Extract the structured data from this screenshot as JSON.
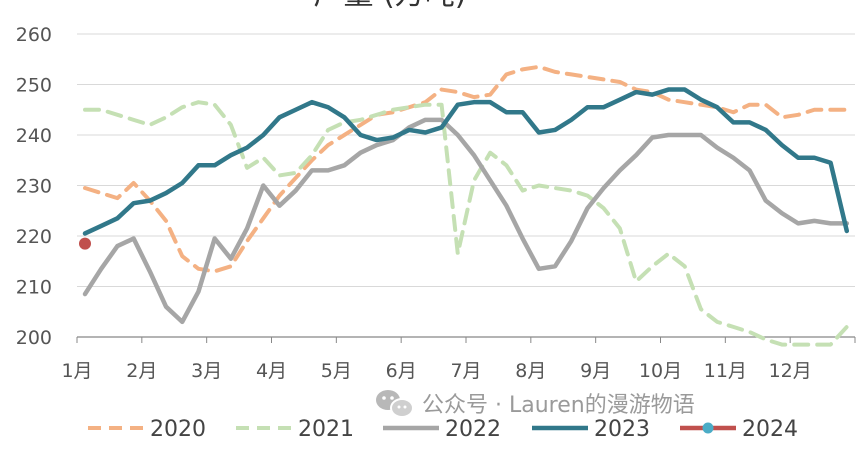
{
  "chart_data": {
    "type": "line",
    "title": "产量 (万吨)",
    "xlabel": "",
    "ylabel": "",
    "ylim": [
      200,
      260
    ],
    "yticks": [
      200,
      210,
      220,
      230,
      240,
      250,
      260
    ],
    "xlim": [
      0,
      48
    ],
    "x_tick_labels": [
      "1月",
      "2月",
      "3月",
      "4月",
      "5月",
      "6月",
      "7月",
      "8月",
      "9月",
      "10月",
      "11月",
      "12月"
    ],
    "grid": "horizontal",
    "legend_position": "bottom",
    "series": [
      {
        "name": "2020",
        "color": "#f4b183",
        "style": "dashed",
        "x": [
          0,
          1,
          2,
          3,
          4,
          5,
          6,
          7,
          8,
          9,
          10,
          11,
          12,
          13,
          14,
          15,
          16,
          17,
          18,
          19,
          20,
          21,
          22,
          23,
          24,
          25,
          26,
          27,
          28,
          29,
          30,
          31,
          32,
          33,
          34,
          35,
          36,
          37,
          38,
          39,
          40,
          41,
          42,
          43,
          44,
          45,
          46,
          47
        ],
        "values": [
          229.5,
          228.5,
          227.5,
          230.5,
          227,
          223,
          216,
          213.5,
          213,
          214,
          219,
          223.5,
          228,
          231.5,
          235,
          238,
          240,
          242,
          244,
          244.5,
          245.5,
          246.5,
          249,
          248.5,
          247.5,
          248,
          252,
          253,
          253.5,
          252.5,
          252,
          251.5,
          251,
          250.5,
          249,
          248.5,
          247,
          246.5,
          246,
          245.5,
          244.5,
          246,
          246,
          243.5,
          244,
          245,
          245,
          245
        ]
      },
      {
        "name": "2021",
        "color": "#c5e0b4",
        "style": "dashed",
        "x": [
          0,
          1,
          2,
          3,
          4,
          5,
          6,
          7,
          8,
          9,
          10,
          11,
          12,
          13,
          14,
          15,
          16,
          17,
          18,
          19,
          20,
          21,
          22,
          23,
          24,
          25,
          26,
          27,
          28,
          29,
          30,
          31,
          32,
          33,
          34,
          35,
          36,
          37,
          38,
          39,
          40,
          41,
          42,
          43,
          44,
          45,
          46,
          47
        ],
        "values": [
          245,
          245,
          244,
          243,
          242,
          243.5,
          245.5,
          246.5,
          246,
          242,
          233.5,
          235.5,
          232,
          232.5,
          236,
          241,
          242.5,
          243,
          244,
          245,
          245.5,
          246,
          246,
          216.5,
          231,
          236.5,
          234,
          229,
          230,
          229.5,
          229,
          228,
          225.5,
          221.5,
          211,
          214,
          216.5,
          214,
          205.5,
          203,
          202,
          201,
          199.5,
          198.5,
          198.5,
          198.5,
          198.5,
          202
        ]
      },
      {
        "name": "2022",
        "color": "#a6a6a6",
        "style": "solid",
        "x": [
          0,
          1,
          2,
          3,
          4,
          5,
          6,
          7,
          8,
          9,
          10,
          11,
          12,
          13,
          14,
          15,
          16,
          17,
          18,
          19,
          20,
          21,
          22,
          23,
          24,
          25,
          26,
          27,
          28,
          29,
          30,
          31,
          32,
          33,
          34,
          35,
          36,
          37,
          38,
          39,
          40,
          41,
          42,
          43,
          44,
          45,
          46,
          47
        ],
        "values": [
          208.5,
          213.5,
          218,
          219.5,
          213,
          206,
          203,
          209,
          219.5,
          215.5,
          221.5,
          230,
          226,
          229,
          233,
          233,
          234,
          236.5,
          238,
          239,
          241.5,
          243,
          243,
          240,
          236,
          231,
          226,
          219.5,
          213.5,
          214,
          219,
          225.5,
          229.5,
          233,
          236,
          239.5,
          240,
          240,
          240,
          237.5,
          235.5,
          233,
          227,
          224.5,
          222.5,
          223,
          222.5,
          222.5
        ]
      },
      {
        "name": "2023",
        "color": "#31788a",
        "style": "solid",
        "x": [
          0,
          1,
          2,
          3,
          4,
          5,
          6,
          7,
          8,
          9,
          10,
          11,
          12,
          13,
          14,
          15,
          16,
          17,
          18,
          19,
          20,
          21,
          22,
          23,
          24,
          25,
          26,
          27,
          28,
          29,
          30,
          31,
          32,
          33,
          34,
          35,
          36,
          37,
          38,
          39,
          40,
          41,
          42,
          43,
          44,
          45,
          46,
          47
        ],
        "values": [
          220.5,
          222,
          223.5,
          226.5,
          227,
          228.5,
          230.5,
          234,
          234,
          236,
          237.5,
          240,
          243.5,
          245,
          246.5,
          245.5,
          243.5,
          240,
          239,
          239.5,
          241,
          240.5,
          241.5,
          246,
          246.5,
          246.5,
          244.5,
          244.5,
          240.5,
          241,
          243,
          245.5,
          245.5,
          247,
          248.5,
          248,
          249,
          249,
          247,
          245.5,
          242.5,
          242.5,
          241,
          238,
          235.5,
          235.5,
          234.5,
          221
        ]
      },
      {
        "name": "2024",
        "color": "#c0504d",
        "style": "point",
        "x": [
          0
        ],
        "values": [
          218.5
        ]
      }
    ]
  },
  "watermark": "公众号 · Lauren的漫游物语",
  "legend": {
    "items": [
      "2020",
      "2021",
      "2022",
      "2023",
      "2024"
    ],
    "marker_2024_color": "#4bacc6"
  },
  "colors": {
    "axis": "#888888",
    "grid": "#d9d9d9",
    "text": "#555555"
  }
}
